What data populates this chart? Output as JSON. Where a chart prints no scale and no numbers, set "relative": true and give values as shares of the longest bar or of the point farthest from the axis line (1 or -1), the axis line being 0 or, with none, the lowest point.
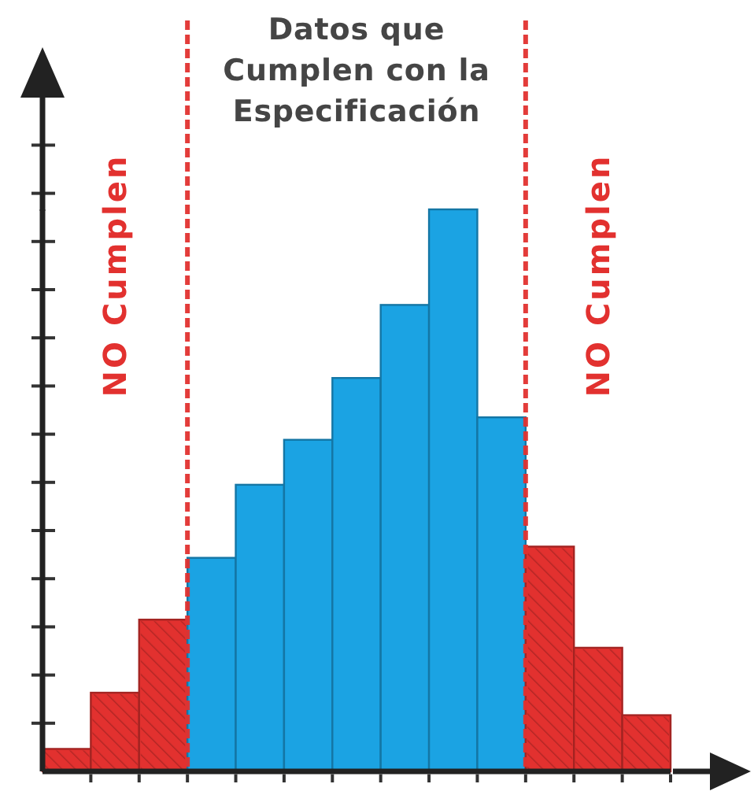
{
  "chart_data": {
    "type": "bar",
    "categories": [
      null,
      null,
      null,
      null,
      null,
      null,
      null,
      null,
      null,
      null,
      null,
      null,
      null
    ],
    "values": [
      0.04,
      0.14,
      0.27,
      0.38,
      0.51,
      0.59,
      0.7,
      0.83,
      1,
      0.63,
      0.4,
      0.22,
      0.1
    ],
    "colors": [
      "#e2312f",
      "#e2312f",
      "#e2312f",
      "#1ba3e3",
      "#1ba3e3",
      "#1ba3e3",
      "#1ba3e3",
      "#1ba3e3",
      "#1ba3e3",
      "#1ba3e3",
      "#e2312f",
      "#e2312f",
      "#e2312f"
    ],
    "relative": true,
    "annotations": [
      "NO Cumplen",
      "Datos que Cumplen con la Especificación",
      "NO Cumplen"
    ]
  }
}
